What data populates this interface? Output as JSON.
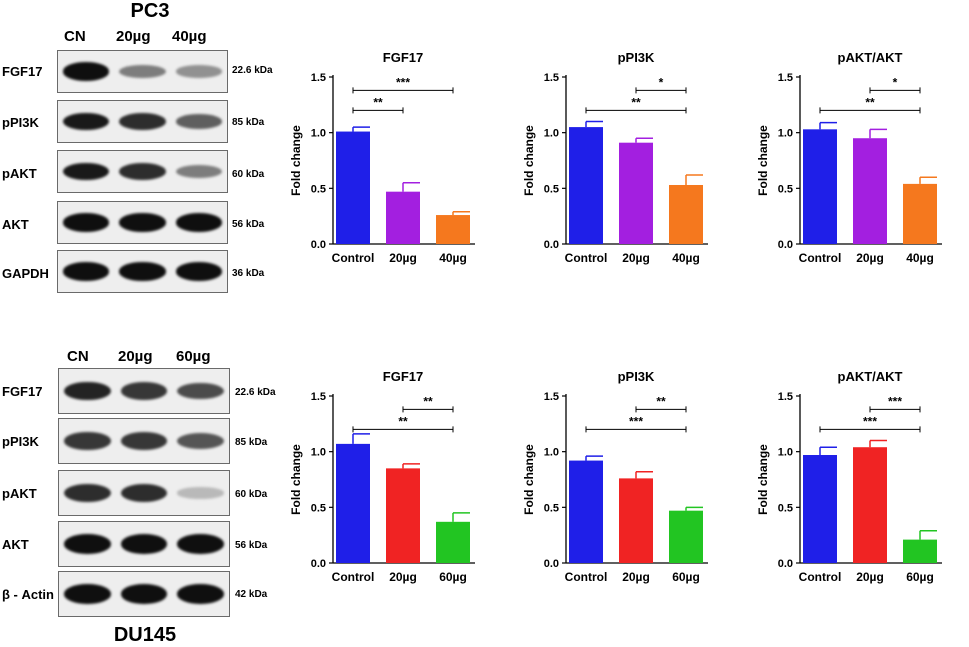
{
  "panels": [
    {
      "cell_line": "PC3",
      "lanes": [
        "CN",
        "20µg",
        "40µg"
      ],
      "blots": [
        {
          "label": "FGF17",
          "size": "22.6 kDa",
          "intensity": [
            1.0,
            0.45,
            0.35
          ]
        },
        {
          "label": "pPI3K",
          "size": "85 kDa",
          "intensity": [
            0.95,
            0.85,
            0.6
          ]
        },
        {
          "label": "pAKT",
          "size": "60 kDa",
          "intensity": [
            0.95,
            0.85,
            0.45
          ]
        },
        {
          "label": "AKT",
          "size": "56 kDa",
          "intensity": [
            1.0,
            1.0,
            1.0
          ]
        },
        {
          "label": "GAPDH",
          "size": "36 kDa",
          "intensity": [
            1.0,
            1.0,
            1.0
          ]
        }
      ]
    },
    {
      "cell_line": "DU145",
      "lanes": [
        "CN",
        "20µg",
        "60µg"
      ],
      "blots": [
        {
          "label": "FGF17",
          "size": "22.6 kDa",
          "intensity": [
            0.9,
            0.8,
            0.7
          ]
        },
        {
          "label": "pPI3K",
          "size": "85 kDa",
          "intensity": [
            0.8,
            0.8,
            0.65
          ]
        },
        {
          "label": "pAKT",
          "size": "60 kDa",
          "intensity": [
            0.85,
            0.85,
            0.15
          ]
        },
        {
          "label": "AKT",
          "size": "56 kDa",
          "intensity": [
            1.0,
            1.0,
            1.0
          ]
        },
        {
          "label": "β - Actin",
          "size": "42 kDa",
          "intensity": [
            1.0,
            1.0,
            1.0
          ]
        }
      ]
    }
  ],
  "colors": {
    "control": "#1f1fe8",
    "pc3_20": "#a31fe0",
    "pc3_40": "#f5781e",
    "du_20": "#f02323",
    "du_60": "#22c522"
  },
  "chart_data": [
    {
      "type": "bar",
      "title": "FGF17",
      "ylabel": "Fold change",
      "categories": [
        "Control",
        "20µg",
        "40µg"
      ],
      "values": [
        1.01,
        0.47,
        0.26
      ],
      "errors": [
        0.04,
        0.08,
        0.03
      ],
      "ylim": [
        0,
        1.5
      ],
      "yticks": [
        "0.0",
        "0.5",
        "1.0",
        "1.5"
      ],
      "significance": [
        {
          "from": 0,
          "to": 1,
          "label": "**"
        },
        {
          "from": 0,
          "to": 2,
          "label": "***"
        }
      ]
    },
    {
      "type": "bar",
      "title": "pPI3K",
      "ylabel": "Fold change",
      "categories": [
        "Control",
        "20µg",
        "40µg"
      ],
      "values": [
        1.05,
        0.91,
        0.53
      ],
      "errors": [
        0.05,
        0.04,
        0.09
      ],
      "ylim": [
        0,
        1.5
      ],
      "yticks": [
        "0.0",
        "0.5",
        "1.0",
        "1.5"
      ],
      "significance": [
        {
          "from": 1,
          "to": 2,
          "label": "*"
        },
        {
          "from": 0,
          "to": 2,
          "label": "**"
        }
      ]
    },
    {
      "type": "bar",
      "title": "pAKT/AKT",
      "ylabel": "Fold change",
      "categories": [
        "Control",
        "20µg",
        "40µg"
      ],
      "values": [
        1.03,
        0.95,
        0.54
      ],
      "errors": [
        0.06,
        0.08,
        0.06
      ],
      "ylim": [
        0,
        1.5
      ],
      "yticks": [
        "0.0",
        "0.5",
        "1.0",
        "1.5"
      ],
      "significance": [
        {
          "from": 1,
          "to": 2,
          "label": "*"
        },
        {
          "from": 0,
          "to": 2,
          "label": "**"
        }
      ]
    },
    {
      "type": "bar",
      "title": "FGF17",
      "ylabel": "Fold change",
      "categories": [
        "Control",
        "20µg",
        "60µg"
      ],
      "values": [
        1.07,
        0.85,
        0.37
      ],
      "errors": [
        0.09,
        0.04,
        0.08
      ],
      "ylim": [
        0,
        1.5
      ],
      "yticks": [
        "0.0",
        "0.5",
        "1.0",
        "1.5"
      ],
      "significance": [
        {
          "from": 1,
          "to": 2,
          "label": "**"
        },
        {
          "from": 0,
          "to": 2,
          "label": "**"
        }
      ]
    },
    {
      "type": "bar",
      "title": "pPI3K",
      "ylabel": "Fold change",
      "categories": [
        "Control",
        "20µg",
        "60µg"
      ],
      "values": [
        0.92,
        0.76,
        0.47
      ],
      "errors": [
        0.04,
        0.06,
        0.03
      ],
      "ylim": [
        0,
        1.5
      ],
      "yticks": [
        "0.0",
        "0.5",
        "1.0",
        "1.5"
      ],
      "significance": [
        {
          "from": 1,
          "to": 2,
          "label": "**"
        },
        {
          "from": 0,
          "to": 2,
          "label": "***"
        }
      ]
    },
    {
      "type": "bar",
      "title": "pAKT/AKT",
      "ylabel": "Fold change",
      "categories": [
        "Control",
        "20µg",
        "60µg"
      ],
      "values": [
        0.97,
        1.04,
        0.21
      ],
      "errors": [
        0.07,
        0.06,
        0.08
      ],
      "ylim": [
        0,
        1.5
      ],
      "yticks": [
        "0.0",
        "0.5",
        "1.0",
        "1.5"
      ],
      "significance": [
        {
          "from": 1,
          "to": 2,
          "label": "***"
        },
        {
          "from": 0,
          "to": 2,
          "label": "***"
        }
      ]
    }
  ]
}
